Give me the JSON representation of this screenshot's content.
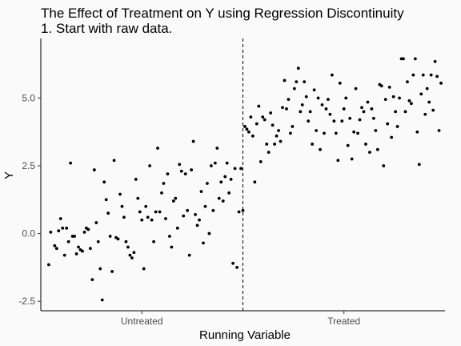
{
  "chart_data": {
    "type": "scatter",
    "title_lines": [
      "The Effect of Treatment on Y using Regression Discontinuity",
      "1. Start with raw data."
    ],
    "xlabel": "Running Variable",
    "ylabel": "Y",
    "x_tick_labels": [
      "Untreated",
      "Treated"
    ],
    "y_ticks": [
      -2.5,
      0.0,
      2.5,
      5.0
    ],
    "y_tick_labels": [
      "-2.5",
      "0.0",
      "2.5",
      "5.0"
    ],
    "ylim": [
      -2.85,
      7.2
    ],
    "xlim": [
      -1.02,
      1.02
    ],
    "cutoff": 0,
    "cutoff_line_style": "dashed",
    "grid": false,
    "point_color": "#000000",
    "series": [
      {
        "name": "Untreated",
        "points": [
          [
            -0.98,
            -1.15
          ],
          [
            -0.97,
            0.05
          ],
          [
            -0.95,
            -0.45
          ],
          [
            -0.94,
            -0.55
          ],
          [
            -0.93,
            0.1
          ],
          [
            -0.92,
            0.55
          ],
          [
            -0.91,
            0.2
          ],
          [
            -0.9,
            -0.8
          ],
          [
            -0.89,
            0.2
          ],
          [
            -0.88,
            -0.3
          ],
          [
            -0.87,
            2.6
          ],
          [
            -0.86,
            -0.1
          ],
          [
            -0.85,
            -0.1
          ],
          [
            -0.84,
            -0.75
          ],
          [
            -0.83,
            -0.5
          ],
          [
            -0.82,
            -0.6
          ],
          [
            -0.81,
            -0.65
          ],
          [
            -0.8,
            0.05
          ],
          [
            -0.79,
            0.2
          ],
          [
            -0.78,
            0.15
          ],
          [
            -0.77,
            -0.55
          ],
          [
            -0.76,
            -1.7
          ],
          [
            -0.75,
            2.35
          ],
          [
            -0.74,
            0.4
          ],
          [
            -0.73,
            -0.3
          ],
          [
            -0.72,
            -1.3
          ],
          [
            -0.71,
            -2.45
          ],
          [
            -0.7,
            1.9
          ],
          [
            -0.69,
            1.25
          ],
          [
            -0.68,
            0.75
          ],
          [
            -0.67,
            -0.1
          ],
          [
            -0.66,
            -1.4
          ],
          [
            -0.65,
            2.7
          ],
          [
            -0.64,
            -0.15
          ],
          [
            -0.63,
            -0.2
          ],
          [
            -0.62,
            1.45
          ],
          [
            -0.61,
            1.0
          ],
          [
            -0.6,
            0.6
          ],
          [
            -0.59,
            -0.3
          ],
          [
            -0.58,
            -0.5
          ],
          [
            -0.57,
            -0.8
          ],
          [
            -0.56,
            -0.9
          ],
          [
            -0.55,
            -0.7
          ],
          [
            -0.54,
            2.0
          ],
          [
            -0.53,
            1.3
          ],
          [
            -0.52,
            0.8
          ],
          [
            -0.51,
            0.5
          ],
          [
            -0.5,
            -1.3
          ],
          [
            -0.49,
            1.0
          ],
          [
            -0.48,
            0.6
          ],
          [
            -0.47,
            2.5
          ],
          [
            -0.46,
            0.5
          ],
          [
            -0.45,
            -0.3
          ],
          [
            -0.44,
            0.8
          ],
          [
            -0.43,
            3.15
          ],
          [
            -0.42,
            0.8
          ],
          [
            -0.41,
            1.5
          ],
          [
            -0.4,
            1.85
          ],
          [
            -0.39,
            0.55
          ],
          [
            -0.38,
            2.2
          ],
          [
            -0.37,
            -0.1
          ],
          [
            -0.36,
            -0.5
          ],
          [
            -0.35,
            1.2
          ],
          [
            -0.34,
            1.3
          ],
          [
            -0.33,
            0.2
          ],
          [
            -0.32,
            2.55
          ],
          [
            -0.31,
            2.3
          ],
          [
            -0.3,
            0.65
          ],
          [
            -0.29,
            2.2
          ],
          [
            -0.28,
            0.85
          ],
          [
            -0.27,
            -0.8
          ],
          [
            -0.26,
            2.35
          ],
          [
            -0.25,
            3.4
          ],
          [
            -0.24,
            0.7
          ],
          [
            -0.23,
            0.3
          ],
          [
            -0.22,
            0.5
          ],
          [
            -0.21,
            1.55
          ],
          [
            -0.2,
            -0.35
          ],
          [
            -0.19,
            1.0
          ],
          [
            -0.18,
            1.85
          ],
          [
            -0.17,
            0.0
          ],
          [
            -0.16,
            2.5
          ],
          [
            -0.15,
            0.85
          ],
          [
            -0.14,
            2.6
          ],
          [
            -0.13,
            3.15
          ],
          [
            -0.12,
            1.3
          ],
          [
            -0.11,
            1.9
          ],
          [
            -0.1,
            1.2
          ],
          [
            -0.09,
            2.1
          ],
          [
            -0.08,
            2.6
          ],
          [
            -0.07,
            1.5
          ],
          [
            -0.06,
            2.0
          ],
          [
            -0.05,
            -1.1
          ],
          [
            -0.04,
            2.4
          ],
          [
            -0.03,
            -1.25
          ],
          [
            -0.02,
            0.8
          ],
          [
            -0.01,
            2.4
          ],
          [
            0.0,
            0.85
          ]
        ]
      },
      {
        "name": "Treated",
        "points": [
          [
            0.01,
            3.95
          ],
          [
            0.02,
            3.85
          ],
          [
            0.03,
            3.75
          ],
          [
            0.04,
            4.3
          ],
          [
            0.05,
            3.6
          ],
          [
            0.06,
            1.9
          ],
          [
            0.07,
            4.05
          ],
          [
            0.08,
            4.7
          ],
          [
            0.09,
            2.65
          ],
          [
            0.1,
            4.3
          ],
          [
            0.11,
            4.2
          ],
          [
            0.12,
            3.3
          ],
          [
            0.13,
            3.0
          ],
          [
            0.14,
            4.45
          ],
          [
            0.15,
            4.0
          ],
          [
            0.16,
            3.3
          ],
          [
            0.17,
            3.6
          ],
          [
            0.18,
            3.8
          ],
          [
            0.19,
            3.4
          ],
          [
            0.2,
            4.65
          ],
          [
            0.21,
            5.65
          ],
          [
            0.22,
            4.6
          ],
          [
            0.23,
            4.95
          ],
          [
            0.24,
            3.7
          ],
          [
            0.25,
            3.95
          ],
          [
            0.26,
            5.35
          ],
          [
            0.27,
            5.6
          ],
          [
            0.28,
            6.1
          ],
          [
            0.29,
            4.5
          ],
          [
            0.3,
            4.75
          ],
          [
            0.31,
            5.6
          ],
          [
            0.32,
            5.05
          ],
          [
            0.33,
            4.15
          ],
          [
            0.34,
            4.5
          ],
          [
            0.35,
            3.3
          ],
          [
            0.36,
            5.3
          ],
          [
            0.37,
            3.8
          ],
          [
            0.38,
            5.0
          ],
          [
            0.39,
            3.1
          ],
          [
            0.4,
            4.75
          ],
          [
            0.41,
            3.7
          ],
          [
            0.42,
            4.6
          ],
          [
            0.43,
            4.95
          ],
          [
            0.44,
            4.4
          ],
          [
            0.45,
            5.85
          ],
          [
            0.46,
            4.15
          ],
          [
            0.47,
            3.7
          ],
          [
            0.48,
            2.7
          ],
          [
            0.49,
            5.55
          ],
          [
            0.5,
            4.15
          ],
          [
            0.51,
            4.6
          ],
          [
            0.52,
            5.0
          ],
          [
            0.53,
            3.25
          ],
          [
            0.54,
            4.25
          ],
          [
            0.55,
            2.75
          ],
          [
            0.56,
            3.75
          ],
          [
            0.57,
            5.35
          ],
          [
            0.58,
            3.7
          ],
          [
            0.59,
            4.2
          ],
          [
            0.6,
            4.65
          ],
          [
            0.61,
            4.5
          ],
          [
            0.62,
            3.3
          ],
          [
            0.63,
            4.85
          ],
          [
            0.64,
            3.0
          ],
          [
            0.65,
            4.6
          ],
          [
            0.66,
            4.25
          ],
          [
            0.67,
            3.8
          ],
          [
            0.68,
            3.1
          ],
          [
            0.69,
            5.5
          ],
          [
            0.7,
            5.45
          ],
          [
            0.71,
            2.5
          ],
          [
            0.72,
            4.95
          ],
          [
            0.73,
            4.05
          ],
          [
            0.74,
            5.4
          ],
          [
            0.75,
            3.55
          ],
          [
            0.76,
            5.05
          ],
          [
            0.77,
            4.5
          ],
          [
            0.78,
            3.95
          ],
          [
            0.79,
            5.0
          ],
          [
            0.8,
            6.45
          ],
          [
            0.81,
            6.45
          ],
          [
            0.82,
            4.5
          ],
          [
            0.83,
            5.6
          ],
          [
            0.84,
            4.9
          ],
          [
            0.85,
            4.8
          ],
          [
            0.86,
            5.85
          ],
          [
            0.87,
            6.45
          ],
          [
            0.88,
            3.75
          ],
          [
            0.89,
            2.55
          ],
          [
            0.9,
            5.15
          ],
          [
            0.91,
            5.85
          ],
          [
            0.92,
            4.4
          ],
          [
            0.93,
            5.35
          ],
          [
            0.94,
            4.85
          ],
          [
            0.95,
            5.85
          ],
          [
            0.96,
            4.55
          ],
          [
            0.97,
            6.35
          ],
          [
            0.98,
            5.8
          ],
          [
            0.99,
            3.8
          ],
          [
            1.0,
            5.55
          ]
        ]
      }
    ]
  }
}
